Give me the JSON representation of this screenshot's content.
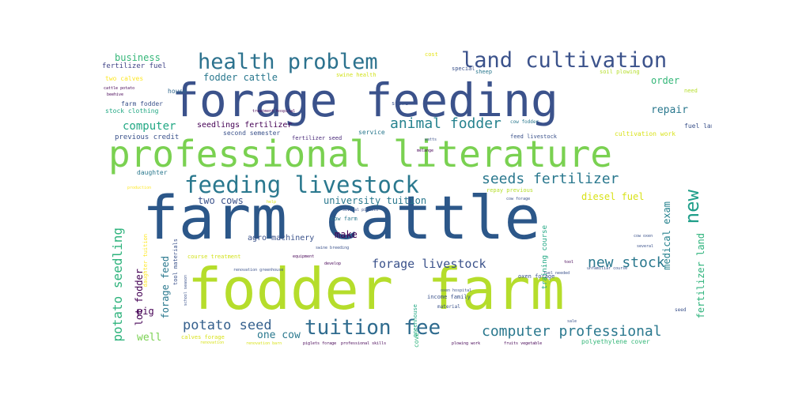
{
  "words": [
    {
      "text": "farm cattle",
      "color": "#2c5789"
    },
    {
      "text": "fodder farm",
      "color": "#b5dd2b"
    },
    {
      "text": "forage feeding",
      "color": "#3b528b"
    },
    {
      "text": "professional literature",
      "color": "#7ad151"
    },
    {
      "text": "land cultivation",
      "color": "#3b528b"
    },
    {
      "text": "health problem",
      "color": "#2c728e"
    },
    {
      "text": "feeding livestock",
      "color": "#2a788e"
    },
    {
      "text": "tuition fee",
      "color": "#2f6b8e"
    },
    {
      "text": "computer professional",
      "color": "#2a788e"
    },
    {
      "text": "animal fodder",
      "color": "#26828e"
    },
    {
      "text": "seeds fertilizer",
      "color": "#2a788e"
    },
    {
      "text": "forage livestock",
      "color": "#3b528b"
    },
    {
      "text": "potato seed",
      "color": "#35608d"
    },
    {
      "text": "new stock",
      "color": "#2a788e"
    },
    {
      "text": "potato seedling",
      "color": "#2eb37c"
    },
    {
      "text": "new",
      "color": "#1f9e89"
    },
    {
      "text": "business",
      "color": "#35b779"
    },
    {
      "text": "fertilizer fuel",
      "color": "#414487"
    },
    {
      "text": "two calves",
      "color": "#fde725"
    },
    {
      "text": "fodder cattle",
      "color": "#2a788e"
    },
    {
      "text": "computer",
      "color": "#22a884"
    },
    {
      "text": "seedlings fertilizer",
      "color": "#440154"
    },
    {
      "text": "second semester",
      "color": "#3b528b"
    },
    {
      "text": "fertilizer seed",
      "color": "#482878"
    },
    {
      "text": "service",
      "color": "#2a788e"
    },
    {
      "text": "previous credit",
      "color": "#3b528b"
    },
    {
      "text": "stock clothing",
      "color": "#22a884"
    },
    {
      "text": "farm fodder",
      "color": "#3b528b"
    },
    {
      "text": "house",
      "color": "#31688e"
    },
    {
      "text": "cattle potato",
      "color": "#440154"
    },
    {
      "text": "beehive",
      "color": "#440154"
    },
    {
      "text": "daughter",
      "color": "#2a788e"
    },
    {
      "text": "production",
      "color": "#fde725"
    },
    {
      "text": "cost",
      "color": "#e5e419"
    },
    {
      "text": "swine health",
      "color": "#d2e21b"
    },
    {
      "text": "special",
      "color": "#3b528b"
    },
    {
      "text": "sheep",
      "color": "#2a788e"
    },
    {
      "text": "soil plowing",
      "color": "#b5de2b"
    },
    {
      "text": "order",
      "color": "#35b779"
    },
    {
      "text": "need",
      "color": "#b5de2b"
    },
    {
      "text": "repair",
      "color": "#2a788e"
    },
    {
      "text": "store",
      "color": "#3b528b"
    },
    {
      "text": "cow fodder",
      "color": "#2a788e"
    },
    {
      "text": "fuel land",
      "color": "#3b528b"
    },
    {
      "text": "feed livestock",
      "color": "#3b528b"
    },
    {
      "text": "cultivation work",
      "color": "#d8e219"
    },
    {
      "text": "mélange",
      "color": "#440154"
    },
    {
      "text": "watts",
      "color": "#3b528b"
    },
    {
      "text": "diesel fuel",
      "color": "#d8e219"
    },
    {
      "text": "medical exam",
      "color": "#26828e"
    },
    {
      "text": "fertilizer land",
      "color": "#2eb37c"
    },
    {
      "text": "two cows",
      "color": "#3b528b"
    },
    {
      "text": "university tuition",
      "color": "#2a788e"
    },
    {
      "text": "repay previous",
      "color": "#b5de2b"
    },
    {
      "text": "cow forage",
      "color": "#3b528b"
    },
    {
      "text": "training course",
      "color": "#22a884"
    },
    {
      "text": "several piglets",
      "color": "#3b528b"
    },
    {
      "text": "cow farm",
      "color": "#2a788e"
    },
    {
      "text": "make",
      "color": "#440154"
    },
    {
      "text": "equipment",
      "color": "#440154"
    },
    {
      "text": "swine breeding",
      "color": "#3b528b"
    },
    {
      "text": "agro machinery",
      "color": "#3b528b"
    },
    {
      "text": "course treatment",
      "color": "#d2e21b"
    },
    {
      "text": "renovation greenhouse",
      "color": "#3b528b"
    },
    {
      "text": "develop",
      "color": "#440154"
    },
    {
      "text": "oxen forage",
      "color": "#3b528b"
    },
    {
      "text": "fuel needed",
      "color": "#3b528b"
    },
    {
      "text": "unfamiliar course",
      "color": "#3b528b"
    },
    {
      "text": "school season",
      "color": "#3b528b"
    },
    {
      "text": "several",
      "color": "#3b528b"
    },
    {
      "text": "oxen hospital",
      "color": "#3b528b"
    },
    {
      "text": "income family",
      "color": "#3b528b"
    },
    {
      "text": "material",
      "color": "#3b528b"
    },
    {
      "text": "greenhouse",
      "color": "#22a884"
    },
    {
      "text": "cover",
      "color": "#2eb37c"
    },
    {
      "text": "pig",
      "color": "#440154"
    },
    {
      "text": "lot fodder",
      "color": "#440154"
    },
    {
      "text": "forage feed",
      "color": "#2a788e"
    },
    {
      "text": "tool materials",
      "color": "#3b528b"
    },
    {
      "text": "daughter tuition",
      "color": "#fde725"
    },
    {
      "text": "well",
      "color": "#7ad151"
    },
    {
      "text": "calves forage",
      "color": "#d8e219"
    },
    {
      "text": "one cow",
      "color": "#2a788e"
    },
    {
      "text": "renovation",
      "color": "#d8e219"
    },
    {
      "text": "renovation barn",
      "color": "#d8e219"
    },
    {
      "text": "piglets forage",
      "color": "#440154"
    },
    {
      "text": "professional skills",
      "color": "#440154"
    },
    {
      "text": "plowing work",
      "color": "#440154"
    },
    {
      "text": "fruits vegetable",
      "color": "#440154"
    },
    {
      "text": "polyethylene cover",
      "color": "#35b779"
    },
    {
      "text": "sale",
      "color": "#3b528b"
    },
    {
      "text": "seed",
      "color": "#3b528b"
    },
    {
      "text": "tool",
      "color": "#440154"
    },
    {
      "text": "help",
      "color": "#d8e219"
    },
    {
      "text": "treatment hospital",
      "color": "#440154"
    },
    {
      "text": "cow oxen",
      "color": "#3b528b"
    }
  ]
}
